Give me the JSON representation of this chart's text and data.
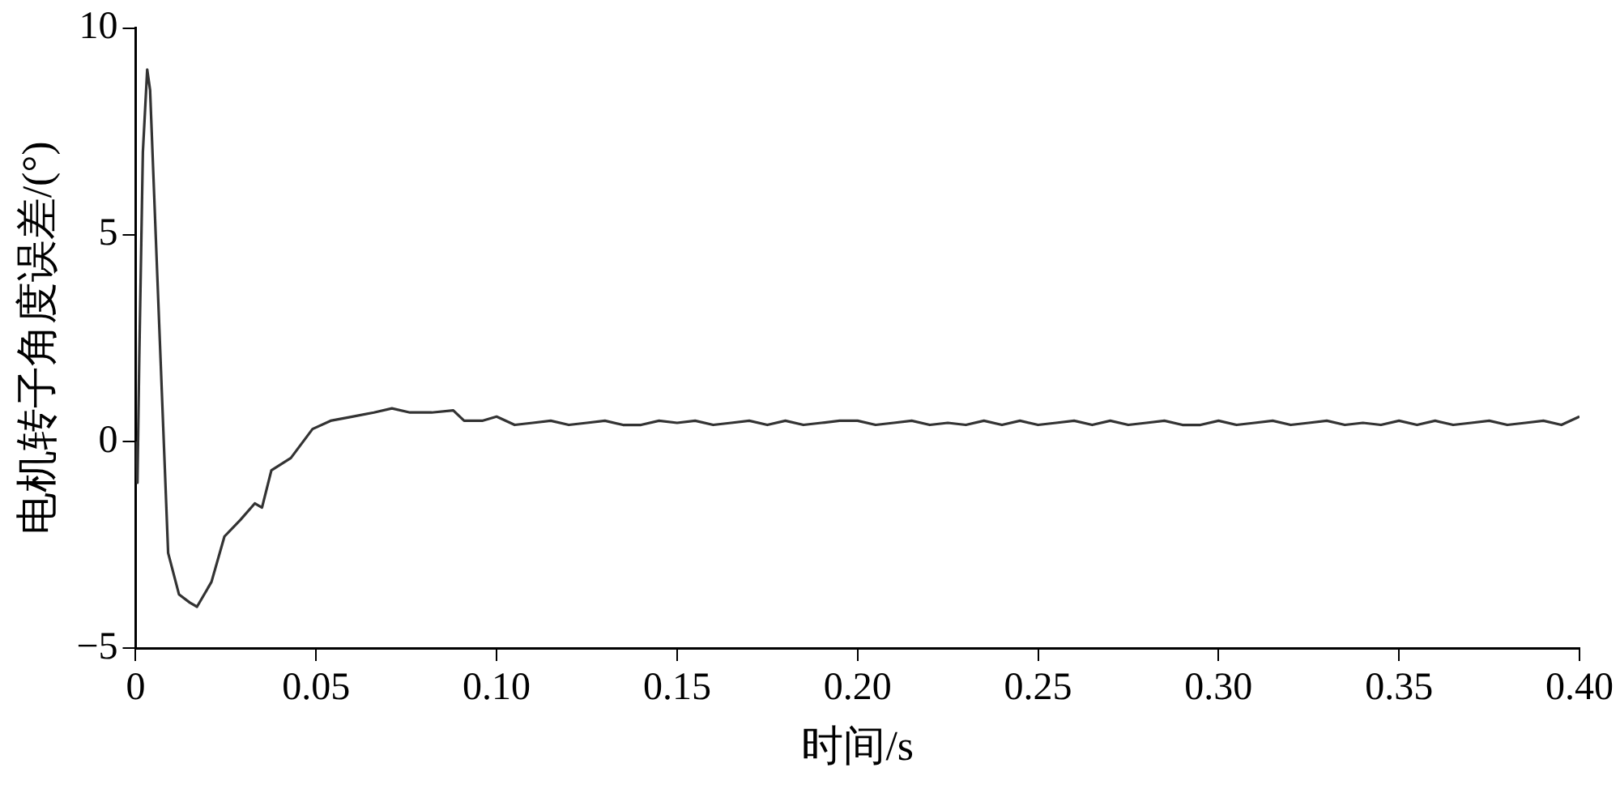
{
  "chart_data": {
    "type": "line",
    "xlabel": "时间/s",
    "ylabel": "电机转子角度误差/(°)",
    "xlim": [
      0,
      0.4
    ],
    "ylim": [
      -5,
      10
    ],
    "xticks": [
      {
        "value": 0,
        "label": "0"
      },
      0.05,
      {
        "value": 0.1,
        "label": "0.10"
      },
      0.15,
      {
        "value": 0.2,
        "label": "0.20"
      },
      0.25,
      {
        "value": 0.3,
        "label": "0.30"
      },
      0.35,
      {
        "value": 0.4,
        "label": "0.40"
      }
    ],
    "yticks": [
      -5,
      0,
      5,
      10
    ],
    "grid": false,
    "legend": false,
    "marker": "none",
    "line_style": "solid",
    "series": [
      {
        "color": "#333333",
        "x": [
          0,
          0.0005,
          0.001,
          0.002,
          0.0032,
          0.004,
          0.006,
          0.009,
          0.012,
          0.015,
          0.017,
          0.019,
          0.021,
          0.0246,
          0.029,
          0.033,
          0.035,
          0.0376,
          0.043,
          0.049,
          0.054,
          0.06,
          0.066,
          0.071,
          0.076,
          0.082,
          0.088,
          0.091,
          0.096,
          0.1,
          0.105,
          0.11,
          0.115,
          0.12,
          0.125,
          0.13,
          0.135,
          0.14,
          0.145,
          0.15,
          0.155,
          0.16,
          0.165,
          0.17,
          0.175,
          0.18,
          0.185,
          0.19,
          0.195,
          0.2,
          0.205,
          0.21,
          0.215,
          0.22,
          0.225,
          0.23,
          0.235,
          0.24,
          0.245,
          0.25,
          0.255,
          0.26,
          0.265,
          0.27,
          0.275,
          0.28,
          0.285,
          0.29,
          0.295,
          0.3,
          0.305,
          0.31,
          0.315,
          0.32,
          0.325,
          0.33,
          0.335,
          0.34,
          0.345,
          0.35,
          0.355,
          0.36,
          0.365,
          0.37,
          0.375,
          0.38,
          0.385,
          0.39,
          0.395,
          0.4
        ],
        "values": [
          0,
          -1,
          2,
          7,
          9,
          8.5,
          4,
          -2.7,
          -3.7,
          -3.9,
          -4,
          -3.7,
          -3.4,
          -2.3,
          -1.9,
          -1.5,
          -1.6,
          -0.7,
          -0.4,
          0.3,
          0.5,
          0.6,
          0.7,
          0.8,
          0.7,
          0.7,
          0.75,
          0.5,
          0.5,
          0.6,
          0.4,
          0.45,
          0.5,
          0.4,
          0.45,
          0.5,
          0.4,
          0.4,
          0.5,
          0.45,
          0.5,
          0.4,
          0.45,
          0.5,
          0.4,
          0.5,
          0.4,
          0.45,
          0.5,
          0.5,
          0.4,
          0.45,
          0.5,
          0.4,
          0.45,
          0.4,
          0.5,
          0.4,
          0.5,
          0.4,
          0.45,
          0.5,
          0.4,
          0.5,
          0.4,
          0.45,
          0.5,
          0.4,
          0.4,
          0.5,
          0.4,
          0.45,
          0.5,
          0.4,
          0.45,
          0.5,
          0.4,
          0.45,
          0.4,
          0.5,
          0.4,
          0.5,
          0.4,
          0.45,
          0.5,
          0.4,
          0.45,
          0.5,
          0.4,
          0.6
        ]
      }
    ]
  }
}
